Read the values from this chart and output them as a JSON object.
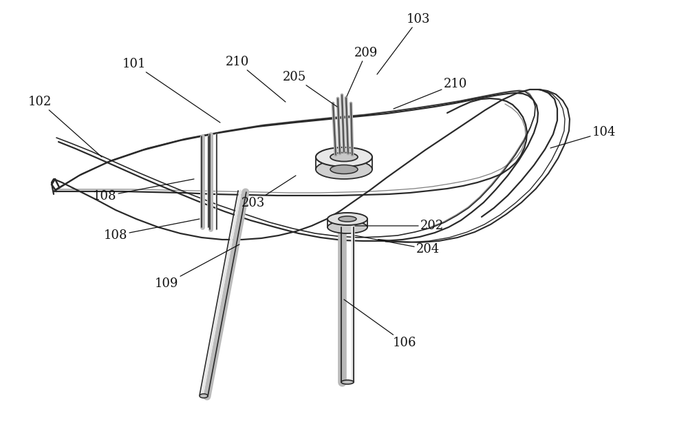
{
  "bg_color": "#ffffff",
  "line_color": "#2a2a2a",
  "figsize": [
    10.0,
    6.26
  ],
  "dpi": 100,
  "annotations": [
    [
      "101",
      195,
      93,
      320,
      178
    ],
    [
      "102",
      58,
      148,
      148,
      228
    ],
    [
      "103",
      608,
      28,
      548,
      108
    ],
    [
      "104",
      878,
      192,
      800,
      215
    ],
    [
      "106",
      588,
      498,
      500,
      435
    ],
    [
      "108",
      152,
      285,
      282,
      260
    ],
    [
      "108",
      168,
      342,
      290,
      318
    ],
    [
      "109",
      242,
      412,
      348,
      355
    ],
    [
      "202",
      628,
      328,
      516,
      328
    ],
    [
      "203",
      368,
      295,
      430,
      255
    ],
    [
      "204",
      622,
      362,
      516,
      342
    ],
    [
      "205",
      428,
      112,
      490,
      155
    ],
    [
      "209",
      532,
      77,
      504,
      140
    ],
    [
      "210",
      345,
      90,
      415,
      148
    ],
    [
      "210",
      662,
      122,
      572,
      158
    ]
  ]
}
